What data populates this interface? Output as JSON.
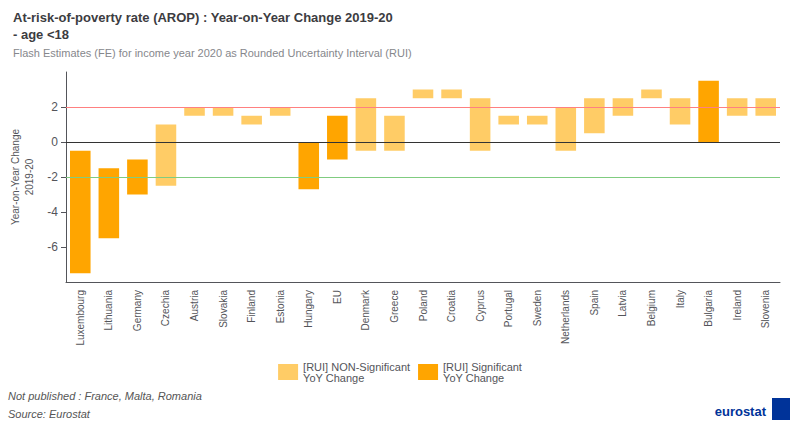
{
  "chart_data": {
    "type": "bar",
    "title": "At-risk-of-poverty rate (AROP) : Year-on-Year Change 2019-20",
    "title_line2": "- age <18",
    "subtitle": "Flash Estimates (FE) for income year 2020 as Rounded Uncertainty Interval (RUI)",
    "ylabel": "Year-on-Year Change\n2019-20",
    "categories": [
      "Luxembourg",
      "Lithuania",
      "Germany",
      "Czechia",
      "Austria",
      "Slovakia",
      "Finland",
      "Estonia",
      "Hungary",
      "EU",
      "Denmark",
      "Greece",
      "Poland",
      "Croatia",
      "Cyprus",
      "Portugal",
      "Sweden",
      "Netherlands",
      "Spain",
      "Latvia",
      "Belgium",
      "Italy",
      "Bulgaria",
      "Ireland",
      "Slovenia"
    ],
    "series": [
      {
        "name": "[RUI] NON-Significant\nYoY Change",
        "color": "#FFCC66",
        "lower": [
          null,
          null,
          null,
          -2.5,
          1.5,
          1.5,
          1.0,
          1.5,
          null,
          null,
          -0.5,
          -0.5,
          2.5,
          2.5,
          -0.5,
          1.0,
          1.0,
          -0.5,
          0.5,
          1.5,
          2.5,
          1.0,
          null,
          1.5,
          1.5
        ],
        "upper": [
          null,
          null,
          null,
          1.0,
          2.0,
          2.0,
          1.5,
          2.0,
          null,
          null,
          2.5,
          1.5,
          3.0,
          3.0,
          2.5,
          1.5,
          1.5,
          2.0,
          2.5,
          2.5,
          3.0,
          2.5,
          null,
          2.5,
          2.5
        ]
      },
      {
        "name": "[RUI] Significant\nYoY Change",
        "color": "#FFA500",
        "lower": [
          -7.5,
          -5.5,
          -3.0,
          null,
          null,
          null,
          null,
          null,
          -2.7,
          -1.0,
          null,
          null,
          null,
          null,
          null,
          null,
          null,
          null,
          null,
          null,
          null,
          null,
          0.0,
          null,
          null
        ],
        "upper": [
          -0.5,
          -1.5,
          -1.0,
          null,
          null,
          null,
          null,
          null,
          0.0,
          1.5,
          null,
          null,
          null,
          null,
          null,
          null,
          null,
          null,
          null,
          null,
          null,
          null,
          3.5,
          null,
          null
        ]
      }
    ],
    "hlines": [
      {
        "y": 2.0,
        "color": "#FF8080"
      },
      {
        "y": -2.0,
        "color": "#80CC80"
      },
      {
        "y": 0,
        "color": "#333333"
      }
    ],
    "ylim": [
      -8,
      4
    ],
    "yticks": [
      -6,
      -4,
      -2,
      0,
      2
    ],
    "grid": false,
    "legend": "bottom",
    "footnotes": [
      "Not published : France, Malta, Romania",
      "Source: Eurostat"
    ],
    "annotations": [
      {
        "text": "eurostat",
        "color": "#003399"
      }
    ]
  }
}
